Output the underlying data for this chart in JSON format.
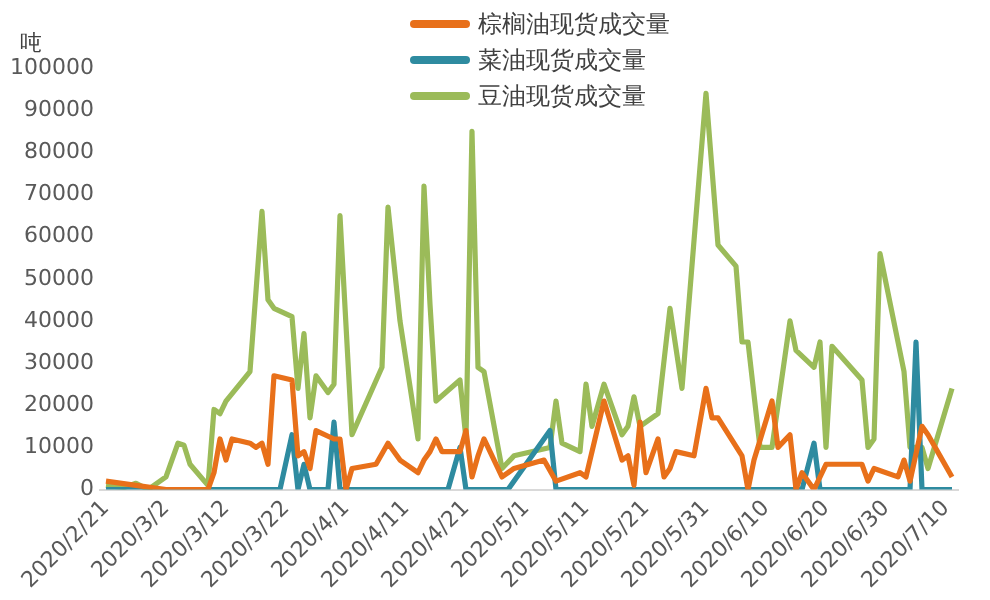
{
  "chart_data": {
    "type": "line",
    "ylabel": "吨",
    "legend": "top",
    "grid": false,
    "marker": "none",
    "ylim": [
      0,
      100000
    ],
    "yticks": [
      0,
      10000,
      20000,
      30000,
      40000,
      50000,
      60000,
      70000,
      80000,
      90000,
      100000
    ],
    "xlim": [
      "2020-02-20",
      "2020-07-12"
    ],
    "xticks": [
      {
        "value": "2020-02-21",
        "label": "2020/2/21"
      },
      {
        "value": "2020-03-02",
        "label": "2020/3/2"
      },
      {
        "value": "2020-03-12",
        "label": "2020/3/12"
      },
      {
        "value": "2020-03-22",
        "label": "2020/3/22"
      },
      {
        "value": "2020-04-01",
        "label": "2020/4/1"
      },
      {
        "value": "2020-04-11",
        "label": "2020/4/11"
      },
      {
        "value": "2020-04-21",
        "label": "2020/4/21"
      },
      {
        "value": "2020-05-01",
        "label": "2020/5/1"
      },
      {
        "value": "2020-05-11",
        "label": "2020/5/11"
      },
      {
        "value": "2020-05-21",
        "label": "2020/5/21"
      },
      {
        "value": "2020-05-31",
        "label": "2020/5/31"
      },
      {
        "value": "2020-06-10",
        "label": "2020/6/10"
      },
      {
        "value": "2020-06-20",
        "label": "2020/6/20"
      },
      {
        "value": "2020-06-30",
        "label": "2020/6/30"
      },
      {
        "value": "2020-07-10",
        "label": "2020/7/10"
      }
    ],
    "series": [
      {
        "name": "棕榈油现货成交量",
        "color": "#e8701a",
        "x": [
          "2020-02-21",
          "2020-02-26",
          "2020-03-02",
          "2020-03-09",
          "2020-03-10",
          "2020-03-11",
          "2020-03-12",
          "2020-03-13",
          "2020-03-16",
          "2020-03-17",
          "2020-03-18",
          "2020-03-19",
          "2020-03-20",
          "2020-03-23",
          "2020-03-24",
          "2020-03-25",
          "2020-03-26",
          "2020-03-27",
          "2020-03-30",
          "2020-03-31",
          "2020-04-01",
          "2020-04-02",
          "2020-04-06",
          "2020-04-08",
          "2020-04-10",
          "2020-04-13",
          "2020-04-14",
          "2020-04-15",
          "2020-04-16",
          "2020-04-17",
          "2020-04-20",
          "2020-04-21",
          "2020-04-22",
          "2020-04-23",
          "2020-04-24",
          "2020-04-27",
          "2020-04-29",
          "2020-05-04",
          "2020-05-06",
          "2020-05-10",
          "2020-05-11",
          "2020-05-14",
          "2020-05-17",
          "2020-05-18",
          "2020-05-19",
          "2020-05-20",
          "2020-05-21",
          "2020-05-23",
          "2020-05-24",
          "2020-05-25",
          "2020-05-26",
          "2020-05-29",
          "2020-05-31",
          "2020-06-01",
          "2020-06-02",
          "2020-06-06",
          "2020-06-07",
          "2020-06-08",
          "2020-06-11",
          "2020-06-12",
          "2020-06-14",
          "2020-06-15",
          "2020-06-16",
          "2020-06-18",
          "2020-06-20",
          "2020-06-26",
          "2020-06-27",
          "2020-06-28",
          "2020-07-02",
          "2020-07-03",
          "2020-07-04",
          "2020-07-06",
          "2020-07-07",
          "2020-07-09",
          "2020-07-11"
        ],
        "values": [
          2000,
          1000,
          0,
          0,
          4000,
          12000,
          7000,
          12000,
          11000,
          10000,
          11000,
          6000,
          27000,
          26000,
          8000,
          9000,
          5000,
          14000,
          12000,
          12000,
          0,
          5000,
          6000,
          11000,
          7000,
          4000,
          7000,
          9000,
          12000,
          9000,
          9000,
          14000,
          3000,
          8000,
          12000,
          3000,
          5000,
          7000,
          2000,
          4000,
          3000,
          21000,
          7000,
          8000,
          1000,
          16000,
          4000,
          12000,
          3000,
          5000,
          9000,
          8000,
          24000,
          17000,
          17000,
          8000,
          0,
          7000,
          21000,
          10000,
          13000,
          0,
          4000,
          0,
          6000,
          6000,
          2000,
          5000,
          3000,
          7000,
          2000,
          15000,
          13000,
          8000,
          3000
        ]
      },
      {
        "name": "菜油现货成交量",
        "color": "#2e8ba0",
        "x": [
          "2020-02-21",
          "2020-03-21",
          "2020-03-23",
          "2020-03-24",
          "2020-03-25",
          "2020-03-26",
          "2020-03-29",
          "2020-03-30",
          "2020-03-31",
          "2020-04-18",
          "2020-04-20",
          "2020-04-21",
          "2020-04-28",
          "2020-05-05",
          "2020-05-06",
          "2020-06-16",
          "2020-06-18",
          "2020-06-19",
          "2020-07-04",
          "2020-07-05",
          "2020-07-06",
          "2020-07-11"
        ],
        "values": [
          0,
          0,
          13000,
          0,
          6000,
          0,
          0,
          16000,
          0,
          0,
          10000,
          0,
          0,
          14000,
          0,
          0,
          11000,
          0,
          0,
          35000,
          0,
          0
        ]
      },
      {
        "name": "豆油现货成交量",
        "color": "#9bbb59",
        "x": [
          "2020-02-21",
          "2020-02-24",
          "2020-02-26",
          "2020-02-28",
          "2020-03-02",
          "2020-03-04",
          "2020-03-05",
          "2020-03-06",
          "2020-03-09",
          "2020-03-10",
          "2020-03-11",
          "2020-03-12",
          "2020-03-16",
          "2020-03-18",
          "2020-03-19",
          "2020-03-20",
          "2020-03-23",
          "2020-03-24",
          "2020-03-25",
          "2020-03-26",
          "2020-03-27",
          "2020-03-29",
          "2020-03-30",
          "2020-03-31",
          "2020-04-02",
          "2020-04-07",
          "2020-04-08",
          "2020-04-10",
          "2020-04-13",
          "2020-04-14",
          "2020-04-15",
          "2020-04-16",
          "2020-04-20",
          "2020-04-21",
          "2020-04-22",
          "2020-04-23",
          "2020-04-24",
          "2020-04-27",
          "2020-04-29",
          "2020-05-05",
          "2020-05-06",
          "2020-05-07",
          "2020-05-10",
          "2020-05-11",
          "2020-05-12",
          "2020-05-14",
          "2020-05-17",
          "2020-05-18",
          "2020-05-19",
          "2020-05-20",
          "2020-05-23",
          "2020-05-25",
          "2020-05-27",
          "2020-05-31",
          "2020-06-02",
          "2020-06-05",
          "2020-06-06",
          "2020-06-07",
          "2020-06-09",
          "2020-06-11",
          "2020-06-14",
          "2020-06-15",
          "2020-06-18",
          "2020-06-19",
          "2020-06-20",
          "2020-06-21",
          "2020-06-26",
          "2020-06-27",
          "2020-06-28",
          "2020-06-29",
          "2020-07-03",
          "2020-07-04",
          "2020-07-06",
          "2020-07-07",
          "2020-07-11"
        ],
        "values": [
          1000,
          500,
          1500,
          0,
          3000,
          11000,
          10500,
          6000,
          1000,
          19000,
          18000,
          21000,
          28000,
          66000,
          45000,
          43000,
          41000,
          24000,
          37000,
          17000,
          27000,
          23000,
          25000,
          65000,
          13000,
          29000,
          67000,
          40000,
          12000,
          72000,
          44000,
          21000,
          26000,
          12000,
          85000,
          29000,
          28000,
          5000,
          8000,
          10000,
          21000,
          11000,
          9000,
          25000,
          15000,
          25000,
          13000,
          15000,
          22000,
          15000,
          18000,
          43000,
          24000,
          94000,
          58000,
          53000,
          35000,
          35000,
          10000,
          10000,
          40000,
          33000,
          29000,
          35000,
          10000,
          34000,
          26000,
          10000,
          12000,
          56000,
          28000,
          10000,
          10000,
          5000,
          24000
        ]
      }
    ]
  }
}
